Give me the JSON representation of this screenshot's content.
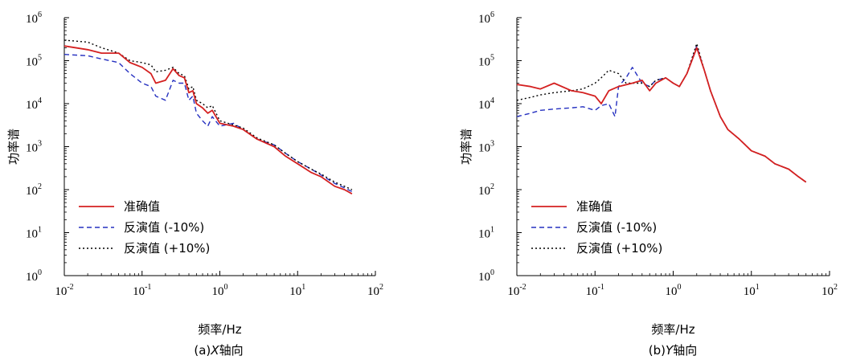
{
  "chart_data": [
    {
      "type": "line",
      "caption_prefix": "(a)",
      "caption_axis": "X",
      "caption_suffix": "轴向",
      "xlabel": "频率/Hz",
      "ylabel": "功率谱",
      "xscale": "log",
      "yscale": "log",
      "xlim": [
        0.01,
        100
      ],
      "ylim": [
        1,
        1000000
      ],
      "x_ticks": [
        {
          "base": "10",
          "exp": "-2"
        },
        {
          "base": "10",
          "exp": "-1"
        },
        {
          "base": "10",
          "exp": "0"
        },
        {
          "base": "10",
          "exp": "1"
        },
        {
          "base": "10",
          "exp": "2"
        }
      ],
      "y_ticks": [
        {
          "base": "10",
          "exp": "0"
        },
        {
          "base": "10",
          "exp": "1"
        },
        {
          "base": "10",
          "exp": "2"
        },
        {
          "base": "10",
          "exp": "3"
        },
        {
          "base": "10",
          "exp": "4"
        },
        {
          "base": "10",
          "exp": "5"
        },
        {
          "base": "10",
          "exp": "6"
        }
      ],
      "legend_position": "bottom-left",
      "grid": false,
      "series": [
        {
          "name": "准确值",
          "color": "#d42020",
          "style": "solid",
          "points": [
            [
              0.01,
              220000
            ],
            [
              0.02,
              180000
            ],
            [
              0.03,
              150000
            ],
            [
              0.05,
              150000
            ],
            [
              0.07,
              90000
            ],
            [
              0.1,
              70000
            ],
            [
              0.13,
              50000
            ],
            [
              0.15,
              30000
            ],
            [
              0.2,
              35000
            ],
            [
              0.25,
              65000
            ],
            [
              0.3,
              45000
            ],
            [
              0.35,
              40000
            ],
            [
              0.4,
              18000
            ],
            [
              0.45,
              20000
            ],
            [
              0.5,
              10000
            ],
            [
              0.6,
              8000
            ],
            [
              0.7,
              6000
            ],
            [
              0.8,
              7000
            ],
            [
              1.0,
              3500
            ],
            [
              1.5,
              3000
            ],
            [
              2,
              2500
            ],
            [
              3,
              1500
            ],
            [
              5,
              1000
            ],
            [
              7,
              600
            ],
            [
              10,
              400
            ],
            [
              15,
              250
            ],
            [
              20,
              200
            ],
            [
              30,
              120
            ],
            [
              40,
              100
            ],
            [
              50,
              80
            ]
          ]
        },
        {
          "name": "反演值 (-10%)",
          "color": "#2530c0",
          "style": "dashed",
          "points": [
            [
              0.01,
              140000
            ],
            [
              0.02,
              130000
            ],
            [
              0.03,
              110000
            ],
            [
              0.05,
              90000
            ],
            [
              0.07,
              50000
            ],
            [
              0.1,
              30000
            ],
            [
              0.13,
              25000
            ],
            [
              0.15,
              15000
            ],
            [
              0.2,
              12000
            ],
            [
              0.25,
              35000
            ],
            [
              0.3,
              30000
            ],
            [
              0.35,
              30000
            ],
            [
              0.4,
              12000
            ],
            [
              0.45,
              15000
            ],
            [
              0.5,
              6000
            ],
            [
              0.6,
              4000
            ],
            [
              0.7,
              3000
            ],
            [
              0.8,
              5000
            ],
            [
              1.0,
              3000
            ],
            [
              1.5,
              3500
            ],
            [
              2,
              2500
            ],
            [
              3,
              1500
            ],
            [
              5,
              1100
            ],
            [
              7,
              700
            ],
            [
              10,
              450
            ],
            [
              15,
              300
            ],
            [
              20,
              220
            ],
            [
              30,
              140
            ],
            [
              40,
              110
            ],
            [
              50,
              90
            ]
          ]
        },
        {
          "name": "反演值 (+10%)",
          "color": "#000000",
          "style": "dotted",
          "points": [
            [
              0.01,
              300000
            ],
            [
              0.02,
              270000
            ],
            [
              0.03,
              200000
            ],
            [
              0.05,
              150000
            ],
            [
              0.07,
              100000
            ],
            [
              0.1,
              90000
            ],
            [
              0.13,
              80000
            ],
            [
              0.15,
              55000
            ],
            [
              0.2,
              60000
            ],
            [
              0.25,
              70000
            ],
            [
              0.3,
              50000
            ],
            [
              0.35,
              45000
            ],
            [
              0.4,
              22000
            ],
            [
              0.45,
              25000
            ],
            [
              0.5,
              12000
            ],
            [
              0.6,
              10000
            ],
            [
              0.7,
              8000
            ],
            [
              0.8,
              9000
            ],
            [
              1.0,
              4000
            ],
            [
              1.5,
              3200
            ],
            [
              2,
              2700
            ],
            [
              3,
              1600
            ],
            [
              5,
              1100
            ],
            [
              7,
              700
            ],
            [
              10,
              450
            ],
            [
              15,
              300
            ],
            [
              20,
              230
            ],
            [
              30,
              150
            ],
            [
              40,
              120
            ],
            [
              50,
              100
            ]
          ]
        }
      ]
    },
    {
      "type": "line",
      "caption_prefix": "(b)",
      "caption_axis": "Y",
      "caption_suffix": "轴向",
      "xlabel": "频率/Hz",
      "ylabel": "功率谱",
      "xscale": "log",
      "yscale": "log",
      "xlim": [
        0.01,
        100
      ],
      "ylim": [
        1,
        1000000
      ],
      "x_ticks": [
        {
          "base": "10",
          "exp": "-2"
        },
        {
          "base": "10",
          "exp": "-1"
        },
        {
          "base": "10",
          "exp": "0"
        },
        {
          "base": "10",
          "exp": "1"
        },
        {
          "base": "10",
          "exp": "2"
        }
      ],
      "y_ticks": [
        {
          "base": "10",
          "exp": "0"
        },
        {
          "base": "10",
          "exp": "1"
        },
        {
          "base": "10",
          "exp": "2"
        },
        {
          "base": "10",
          "exp": "3"
        },
        {
          "base": "10",
          "exp": "4"
        },
        {
          "base": "10",
          "exp": "5"
        },
        {
          "base": "10",
          "exp": "6"
        }
      ],
      "legend_position": "bottom-left",
      "grid": false,
      "series": [
        {
          "name": "准确值",
          "color": "#d42020",
          "style": "solid",
          "points": [
            [
              0.01,
              28000
            ],
            [
              0.015,
              25000
            ],
            [
              0.02,
              22000
            ],
            [
              0.03,
              30000
            ],
            [
              0.05,
              20000
            ],
            [
              0.07,
              18000
            ],
            [
              0.1,
              15000
            ],
            [
              0.12,
              10000
            ],
            [
              0.15,
              20000
            ],
            [
              0.2,
              25000
            ],
            [
              0.3,
              30000
            ],
            [
              0.4,
              35000
            ],
            [
              0.5,
              20000
            ],
            [
              0.6,
              30000
            ],
            [
              0.8,
              40000
            ],
            [
              1.0,
              30000
            ],
            [
              1.2,
              25000
            ],
            [
              1.5,
              50000
            ],
            [
              2.0,
              200000
            ],
            [
              2.5,
              60000
            ],
            [
              3,
              20000
            ],
            [
              4,
              5000
            ],
            [
              5,
              2500
            ],
            [
              7,
              1500
            ],
            [
              10,
              800
            ],
            [
              15,
              600
            ],
            [
              20,
              400
            ],
            [
              30,
              300
            ],
            [
              40,
              200
            ],
            [
              50,
              150
            ]
          ]
        },
        {
          "name": "反演值 (-10%)",
          "color": "#2530c0",
          "style": "dashed",
          "points": [
            [
              0.01,
              5000
            ],
            [
              0.015,
              6000
            ],
            [
              0.02,
              7000
            ],
            [
              0.03,
              7500
            ],
            [
              0.05,
              8000
            ],
            [
              0.07,
              8500
            ],
            [
              0.1,
              7000
            ],
            [
              0.12,
              9000
            ],
            [
              0.15,
              10000
            ],
            [
              0.18,
              5000
            ],
            [
              0.2,
              25000
            ],
            [
              0.25,
              40000
            ],
            [
              0.3,
              70000
            ],
            [
              0.4,
              30000
            ],
            [
              0.5,
              25000
            ],
            [
              0.6,
              35000
            ],
            [
              0.8,
              40000
            ],
            [
              1.0,
              30000
            ],
            [
              1.2,
              25000
            ],
            [
              1.5,
              50000
            ],
            [
              2.0,
              220000
            ],
            [
              2.5,
              60000
            ],
            [
              3,
              20000
            ],
            [
              4,
              5000
            ],
            [
              5,
              2500
            ],
            [
              7,
              1500
            ],
            [
              10,
              800
            ],
            [
              15,
              600
            ],
            [
              20,
              400
            ],
            [
              30,
              300
            ],
            [
              40,
              200
            ],
            [
              50,
              150
            ]
          ]
        },
        {
          "name": "反演值 (+10%)",
          "color": "#000000",
          "style": "dotted",
          "points": [
            [
              0.01,
              12000
            ],
            [
              0.015,
              14000
            ],
            [
              0.02,
              16000
            ],
            [
              0.03,
              18000
            ],
            [
              0.05,
              20000
            ],
            [
              0.07,
              22000
            ],
            [
              0.1,
              30000
            ],
            [
              0.12,
              40000
            ],
            [
              0.15,
              60000
            ],
            [
              0.2,
              50000
            ],
            [
              0.25,
              30000
            ],
            [
              0.3,
              30000
            ],
            [
              0.4,
              30000
            ],
            [
              0.5,
              25000
            ],
            [
              0.6,
              35000
            ],
            [
              0.8,
              40000
            ],
            [
              1.0,
              30000
            ],
            [
              1.2,
              25000
            ],
            [
              1.5,
              50000
            ],
            [
              2.0,
              250000
            ],
            [
              2.5,
              60000
            ],
            [
              3,
              20000
            ],
            [
              4,
              5000
            ],
            [
              5,
              2500
            ],
            [
              7,
              1500
            ],
            [
              10,
              800
            ],
            [
              15,
              600
            ],
            [
              20,
              400
            ],
            [
              30,
              300
            ],
            [
              40,
              200
            ],
            [
              50,
              150
            ]
          ]
        }
      ]
    }
  ]
}
